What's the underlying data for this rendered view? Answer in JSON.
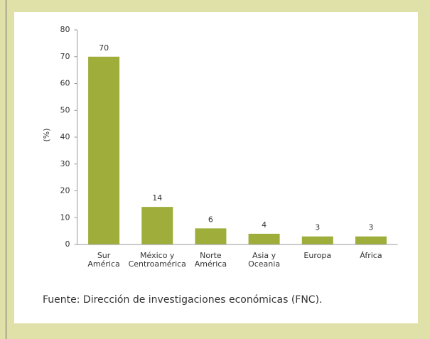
{
  "chart_data": {
    "type": "bar",
    "ylabel": "(%)",
    "categories": [
      [
        "Sur",
        "América"
      ],
      [
        "México y",
        "Centroamérica"
      ],
      [
        "Norte",
        "América"
      ],
      [
        "Asia y",
        "Oceania"
      ],
      [
        "Europa"
      ],
      [
        "África"
      ]
    ],
    "values": [
      70,
      14,
      6,
      4,
      3,
      3
    ],
    "color": "#9fad3a",
    "ylim": [
      0,
      80
    ],
    "yticks": [
      0,
      10,
      20,
      30,
      40,
      50,
      60,
      70,
      80
    ],
    "grid": false,
    "source": "Fuente: Dirección de investigaciones económicas (FNC)."
  }
}
